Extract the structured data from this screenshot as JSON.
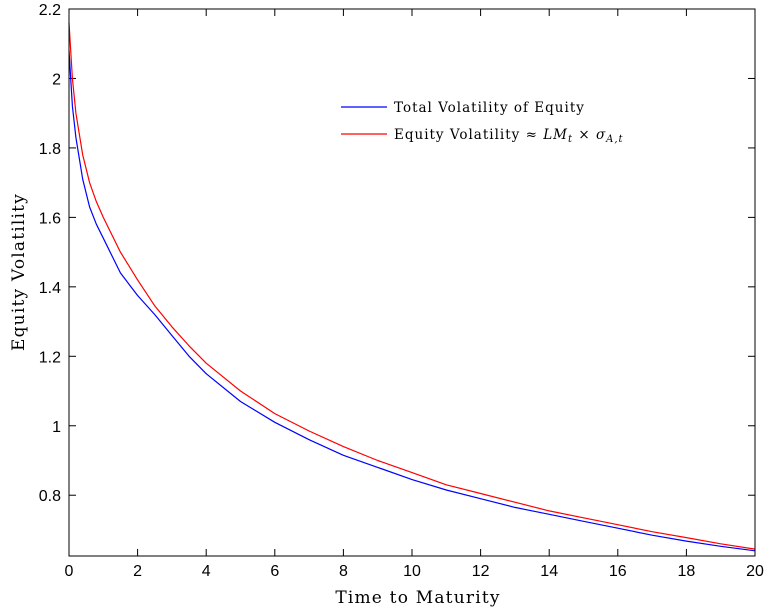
{
  "chart_data": {
    "type": "line",
    "xlabel": "Time to Maturity",
    "ylabel": "Equity Volatility",
    "xlim": [
      0,
      20
    ],
    "ylim": [
      0.625,
      2.2
    ],
    "xticks": [
      0,
      2,
      4,
      6,
      8,
      10,
      12,
      14,
      16,
      18,
      20
    ],
    "xtick_labels": [
      "0",
      "2",
      "4",
      "6",
      "8",
      "10",
      "12",
      "14",
      "16",
      "18",
      "20"
    ],
    "yticks": [
      0.8,
      1,
      1.2,
      1.4,
      1.6,
      1.8,
      2,
      2.2
    ],
    "ytick_labels": [
      "0.8",
      "1",
      "1.2",
      "1.4",
      "1.6",
      "1.8",
      "2",
      "2.2"
    ],
    "grid": false,
    "legend_position": "top-right",
    "colors": {
      "total": "#0000ff",
      "approx": "#ff0000"
    },
    "series": [
      {
        "name": "Total Volatility of Equity",
        "color": "#0000ff",
        "x": [
          0,
          0.1,
          0.2,
          0.4,
          0.6,
          0.8,
          1,
          1.5,
          2,
          2.5,
          3,
          3.5,
          4,
          5,
          6,
          7,
          8,
          9,
          10,
          11,
          12,
          13,
          14,
          15,
          16,
          17,
          18,
          19,
          20
        ],
        "y": [
          2.08,
          1.92,
          1.83,
          1.71,
          1.63,
          1.58,
          1.54,
          1.44,
          1.375,
          1.32,
          1.26,
          1.2,
          1.15,
          1.07,
          1.01,
          0.96,
          0.915,
          0.88,
          0.845,
          0.815,
          0.79,
          0.765,
          0.745,
          0.725,
          0.705,
          0.685,
          0.668,
          0.653,
          0.64
        ]
      },
      {
        "name": "Equity Volatility ≈ LM_t × σ_{A,t}",
        "color": "#ff0000",
        "x": [
          0,
          0.1,
          0.2,
          0.4,
          0.6,
          0.8,
          1,
          1.5,
          2,
          2.5,
          3,
          3.5,
          4,
          5,
          6,
          7,
          8,
          9,
          10,
          11,
          12,
          13,
          14,
          15,
          16,
          17,
          18,
          19,
          20
        ],
        "y": [
          2.16,
          2.0,
          1.9,
          1.78,
          1.7,
          1.645,
          1.6,
          1.5,
          1.42,
          1.345,
          1.285,
          1.23,
          1.18,
          1.1,
          1.035,
          0.985,
          0.94,
          0.9,
          0.865,
          0.83,
          0.805,
          0.78,
          0.755,
          0.735,
          0.715,
          0.695,
          0.678,
          0.66,
          0.645
        ]
      }
    ],
    "legend": {
      "entry1": "Total Volatility of Equity",
      "entry2_text": "Equity Volatility",
      "entry2_approx": "≈",
      "entry2_lm": "LM",
      "entry2_t": "t",
      "entry2_times": "×",
      "entry2_sigma": "σ",
      "entry2_sub": "A,t"
    }
  }
}
